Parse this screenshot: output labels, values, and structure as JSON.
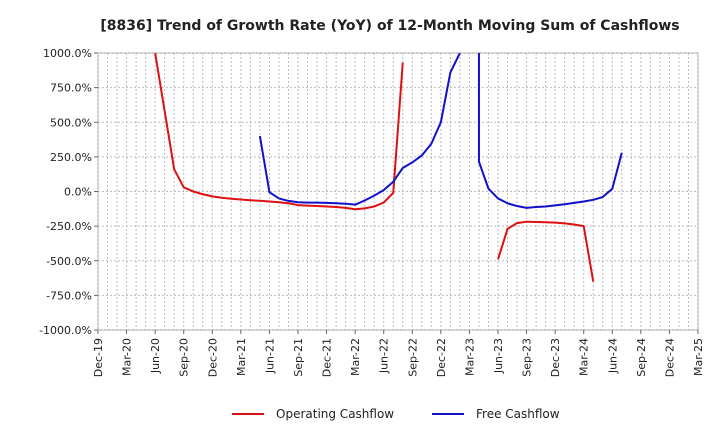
{
  "chart_data": {
    "type": "line",
    "title": "[8836]  Trend of Growth Rate (YoY) of 12-Month Moving Sum of Cashflows",
    "xlabel": "",
    "ylabel": "",
    "x_ticks": [
      "Dec-19",
      "Mar-20",
      "Jun-20",
      "Sep-20",
      "Dec-20",
      "Mar-21",
      "Jun-21",
      "Sep-21",
      "Dec-21",
      "Mar-22",
      "Jun-22",
      "Sep-22",
      "Dec-22",
      "Mar-23",
      "Jun-23",
      "Sep-23",
      "Dec-23",
      "Mar-24",
      "Jun-24",
      "Sep-24",
      "Dec-24",
      "Mar-25"
    ],
    "y_ticks": [
      "1000.0%",
      "750.0%",
      "500.0%",
      "250.0%",
      "0.0%",
      "-250.0%",
      "-500.0%",
      "-750.0%",
      "-1000.0%"
    ],
    "ylim": [
      -1000,
      1000
    ],
    "grid": true,
    "legend": "bottom",
    "series": [
      {
        "name": "Operating Cashflow",
        "color": "#dd1111",
        "segments": [
          [
            [
              "Jun-20",
              1000
            ],
            [
              "Aug-20",
              160
            ],
            [
              "Sep-20",
              30
            ],
            [
              "Oct-20",
              0
            ],
            [
              "Nov-20",
              -20
            ],
            [
              "Dec-20",
              -35
            ],
            [
              "Jan-21",
              -45
            ],
            [
              "Feb-21",
              -52
            ],
            [
              "Mar-21",
              -58
            ],
            [
              "Apr-21",
              -63
            ],
            [
              "May-21",
              -67
            ],
            [
              "Jun-21",
              -72
            ],
            [
              "Jul-21",
              -78
            ],
            [
              "Aug-21",
              -85
            ],
            [
              "Sep-21",
              -98
            ],
            [
              "Oct-21",
              -102
            ],
            [
              "Nov-21",
              -105
            ],
            [
              "Dec-21",
              -108
            ],
            [
              "Jan-22",
              -112
            ],
            [
              "Feb-22",
              -118
            ],
            [
              "Mar-22",
              -128
            ],
            [
              "Apr-22",
              -122
            ],
            [
              "May-22",
              -108
            ],
            [
              "Jun-22",
              -80
            ],
            [
              "Jul-22",
              -10
            ],
            [
              "Aug-22",
              930
            ]
          ],
          [
            [
              "Jun-23",
              -490
            ],
            [
              "Jul-23",
              -270
            ],
            [
              "Aug-23",
              -228
            ],
            [
              "Sep-23",
              -218
            ],
            [
              "Oct-23",
              -220
            ],
            [
              "Nov-23",
              -222
            ],
            [
              "Dec-23",
              -225
            ],
            [
              "Jan-24",
              -230
            ],
            [
              "Feb-24",
              -238
            ],
            [
              "Mar-24",
              -250
            ],
            [
              "Apr-24",
              -650
            ]
          ]
        ]
      },
      {
        "name": "Free Cashflow",
        "color": "#1111cc",
        "segments": [
          [
            [
              "May-21",
              400
            ],
            [
              "Jun-21",
              -5
            ],
            [
              "Jul-21",
              -50
            ],
            [
              "Aug-21",
              -68
            ],
            [
              "Sep-21",
              -78
            ],
            [
              "Oct-21",
              -80
            ],
            [
              "Nov-21",
              -80
            ],
            [
              "Dec-21",
              -82
            ],
            [
              "Jan-22",
              -85
            ],
            [
              "Feb-22",
              -88
            ],
            [
              "Mar-22",
              -95
            ],
            [
              "Apr-22",
              -65
            ],
            [
              "May-22",
              -30
            ],
            [
              "Jun-22",
              10
            ],
            [
              "Jul-22",
              70
            ],
            [
              "Aug-22",
              170
            ],
            [
              "Sep-22",
              210
            ],
            [
              "Oct-22",
              260
            ],
            [
              "Nov-22",
              345
            ],
            [
              "Dec-22",
              500
            ],
            [
              "Jan-23",
              860
            ],
            [
              "Feb-23",
              1000
            ]
          ],
          [
            [
              "Apr-23",
              1000
            ],
            [
              "Apr-23",
              215
            ],
            [
              "May-23",
              20
            ],
            [
              "Jun-23",
              -50
            ],
            [
              "Jul-23",
              -85
            ],
            [
              "Aug-23",
              -105
            ],
            [
              "Sep-23",
              -118
            ],
            [
              "Oct-23",
              -112
            ],
            [
              "Nov-23",
              -108
            ],
            [
              "Dec-23",
              -100
            ],
            [
              "Jan-24",
              -92
            ],
            [
              "Feb-24",
              -82
            ],
            [
              "Mar-24",
              -72
            ],
            [
              "Apr-24",
              -60
            ],
            [
              "May-24",
              -40
            ],
            [
              "Jun-24",
              20
            ],
            [
              "Jul-24",
              280
            ]
          ]
        ]
      }
    ]
  }
}
